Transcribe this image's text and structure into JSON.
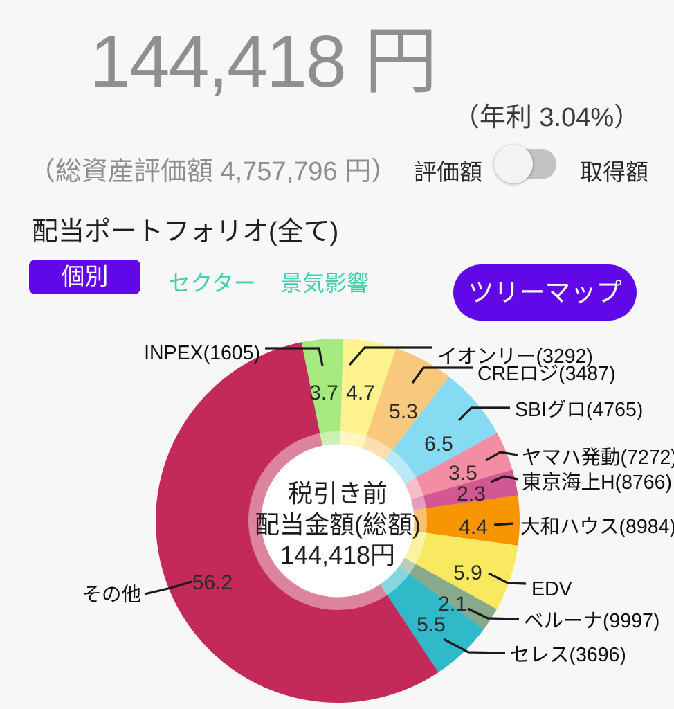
{
  "header": {
    "main_amount": "144,418 円",
    "annual_rate": "（年利 3.04%）",
    "total_assets": "（総資産評価額 4,757,796 円）"
  },
  "toggle": {
    "left_label": "評価額",
    "right_label": "取得額",
    "state": "left"
  },
  "section": {
    "title": "配当ポートフォリオ(全て)"
  },
  "tabs": {
    "individual": "個別",
    "sector": "セクター",
    "economy": "景気影響"
  },
  "treemap_button": "ツリーマップ",
  "colors": {
    "accent_purple": "#6108e8",
    "tab_teal": "#3fd0ab",
    "amount_gray": "#8f8f8f"
  },
  "chart_data": {
    "type": "pie",
    "subtype": "donut",
    "unit": "%",
    "legend_position": "callout-labels",
    "center_text": [
      "税引き前",
      "配当金額(総額)",
      "144,418円"
    ],
    "slices": [
      {
        "label": "INPEX(1605)",
        "value": 3.7,
        "color": "#a6e97e"
      },
      {
        "label": "イオンリー(3292)",
        "value": 4.7,
        "color": "#fdf28e"
      },
      {
        "label": "CREロジ(3487)",
        "value": 5.3,
        "color": "#f8c87d"
      },
      {
        "label": "SBIグロ(4765)",
        "value": 6.5,
        "color": "#86dbf2"
      },
      {
        "label": "ヤマハ発動(7272)",
        "value": 3.5,
        "color": "#f28da3"
      },
      {
        "label": "東京海上H(8766)",
        "value": 2.3,
        "color": "#d25792"
      },
      {
        "label": "大和ハウス(8984)",
        "value": 4.4,
        "color": "#f79500"
      },
      {
        "label": "EDV",
        "value": 5.9,
        "color": "#f8e961"
      },
      {
        "label": "ベルーナ(9997)",
        "value": 2.1,
        "color": "#88a98c"
      },
      {
        "label": "セレス(3696)",
        "value": 5.5,
        "color": "#30b9c9"
      },
      {
        "label": "その他",
        "value": 56.2,
        "color": "#c32a59"
      }
    ]
  }
}
